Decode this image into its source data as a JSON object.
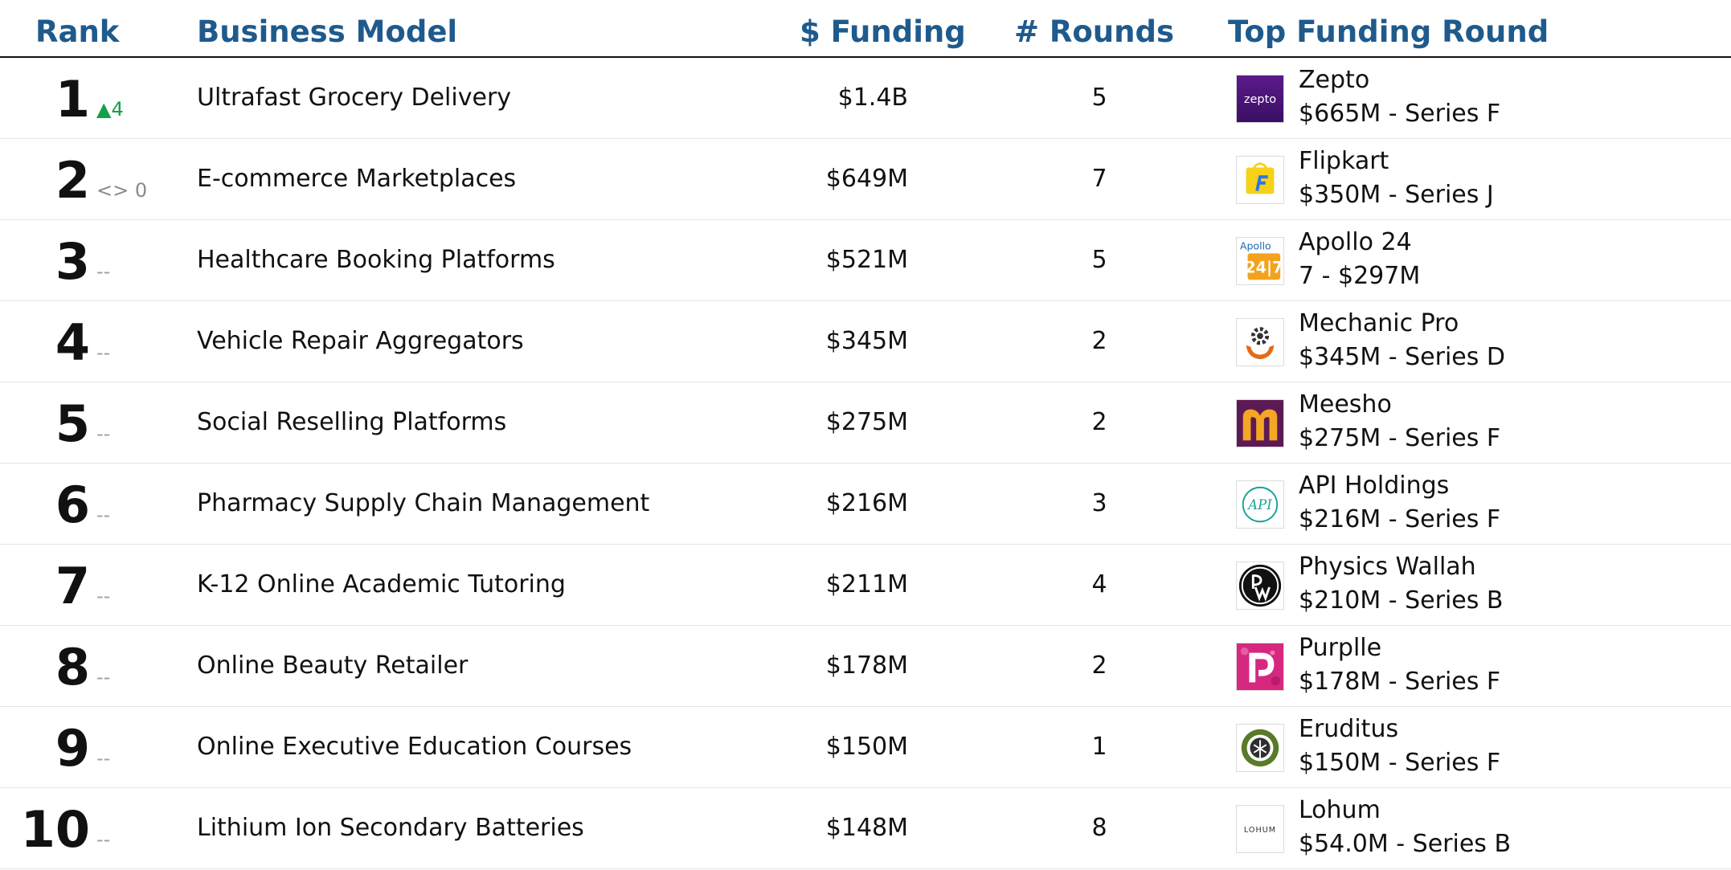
{
  "header": {
    "rank": "Rank",
    "business_model": "Business Model",
    "funding": "$ Funding",
    "rounds": "# Rounds",
    "top_round": "Top Funding Round"
  },
  "colors": {
    "header_text": "#1f5a8c",
    "rank_up": "#12a04a",
    "rank_flat": "#8a8a8a"
  },
  "rows": [
    {
      "rank": "1",
      "change": "▲4",
      "change_type": "up",
      "model": "Ultrafast Grocery Delivery",
      "funding": "$1.4B",
      "rounds": "5",
      "company": "Zepto",
      "round": "$665M - Series F",
      "logo_icon": "zepto-logo",
      "logo_text": "zepto"
    },
    {
      "rank": "2",
      "change": "<> 0",
      "change_type": "flat",
      "model": "E-commerce Marketplaces",
      "funding": "$649M",
      "rounds": "7",
      "company": "Flipkart",
      "round": "$350M - Series J",
      "logo_icon": "flipkart-logo"
    },
    {
      "rank": "3",
      "change": "--",
      "change_type": "none",
      "model": "Healthcare Booking Platforms",
      "funding": "$521M",
      "rounds": "5",
      "company": "Apollo 24",
      "round": "7 - $297M",
      "logo_icon": "apollo-logo",
      "logo_text": "Apollo",
      "logo_text_2": "24|7"
    },
    {
      "rank": "4",
      "change": "--",
      "change_type": "none",
      "model": "Vehicle Repair Aggregators",
      "funding": "$345M",
      "rounds": "2",
      "company": "Mechanic Pro",
      "round": "$345M - Series D",
      "logo_icon": "mechanic-pro-logo"
    },
    {
      "rank": "5",
      "change": "--",
      "change_type": "none",
      "model": "Social Reselling Platforms",
      "funding": "$275M",
      "rounds": "2",
      "company": "Meesho",
      "round": "$275M - Series F",
      "logo_icon": "meesho-logo"
    },
    {
      "rank": "6",
      "change": "--",
      "change_type": "none",
      "model": "Pharmacy Supply Chain Management",
      "funding": "$216M",
      "rounds": "3",
      "company": "API Holdings",
      "round": "$216M - Series F",
      "logo_icon": "api-holdings-logo",
      "logo_text": "API"
    },
    {
      "rank": "7",
      "change": "--",
      "change_type": "none",
      "model": "K-12 Online Academic Tutoring",
      "funding": "$211M",
      "rounds": "4",
      "company": "Physics Wallah",
      "round": "$210M - Series B",
      "logo_icon": "physics-wallah-logo"
    },
    {
      "rank": "8",
      "change": "--",
      "change_type": "none",
      "model": "Online Beauty Retailer",
      "funding": "$178M",
      "rounds": "2",
      "company": "Purplle",
      "round": "$178M - Series F",
      "logo_icon": "purplle-logo"
    },
    {
      "rank": "9",
      "change": "--",
      "change_type": "none",
      "model": "Online Executive Education Courses",
      "funding": "$150M",
      "rounds": "1",
      "company": "Eruditus",
      "round": "$150M - Series F",
      "logo_icon": "eruditus-logo"
    },
    {
      "rank": "10",
      "change": "--",
      "change_type": "none",
      "model": "Lithium Ion Secondary Batteries",
      "funding": "$148M",
      "rounds": "8",
      "company": "Lohum",
      "round": "$54.0M - Series B",
      "logo_icon": "lohum-logo",
      "logo_text": "LOHUM"
    }
  ]
}
